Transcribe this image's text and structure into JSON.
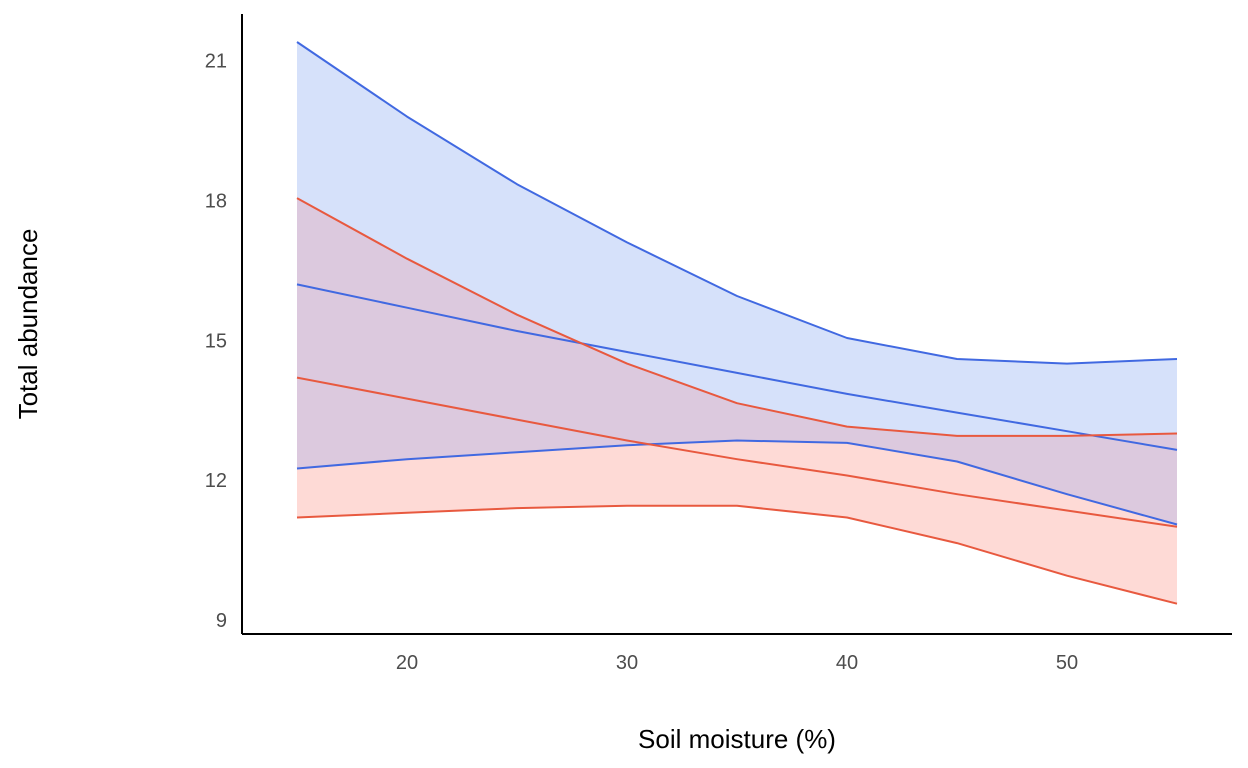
{
  "chart_data": {
    "type": "line",
    "title": "",
    "xlabel": "Soil moisture (%)",
    "ylabel": "Total abundance",
    "xlim": [
      12.5,
      57.5
    ],
    "ylim": [
      8.7,
      22.0
    ],
    "xticks": [
      20,
      30,
      40,
      50
    ],
    "yticks": [
      9,
      12,
      15,
      18,
      21
    ],
    "x": [
      15,
      20,
      25,
      30,
      35,
      40,
      45,
      50,
      55
    ],
    "series": [
      {
        "name": "blue",
        "line_color": "#4169E1",
        "fill_color": "#D6E1FA",
        "fit": [
          16.2,
          15.7,
          15.2,
          14.75,
          14.3,
          13.85,
          13.45,
          13.05,
          12.65
        ],
        "upper": [
          21.4,
          19.8,
          18.35,
          17.1,
          15.95,
          15.05,
          14.6,
          14.5,
          14.6
        ],
        "lower": [
          12.25,
          12.45,
          12.6,
          12.75,
          12.85,
          12.8,
          12.4,
          11.7,
          11.05
        ]
      },
      {
        "name": "red",
        "line_color": "#E8593F",
        "fill_color": "#FEDAD6",
        "fit": [
          14.2,
          13.75,
          13.3,
          12.85,
          12.45,
          12.1,
          11.7,
          11.35,
          11.0
        ],
        "upper": [
          18.05,
          16.75,
          15.55,
          14.5,
          13.65,
          13.15,
          12.95,
          12.95,
          13.0
        ],
        "lower": [
          11.2,
          11.3,
          11.4,
          11.45,
          11.45,
          11.2,
          10.65,
          9.95,
          9.35
        ]
      }
    ],
    "overlap_fill_color": "#DCC9DE",
    "grid": false,
    "legend": "none"
  }
}
